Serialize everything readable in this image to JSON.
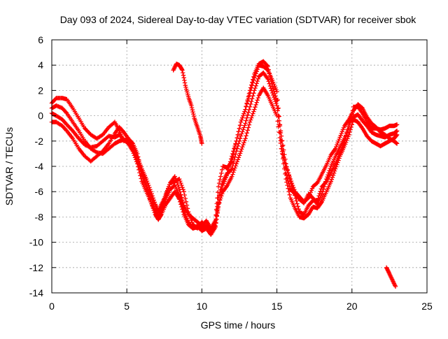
{
  "chart_data": {
    "type": "scatter",
    "title": "Day 093 of 2024, Sidereal Day-to-day VTEC variation (SDTVAR) for receiver sbok",
    "xlabel": "GPS time / hours",
    "ylabel": "SDTVAR / TECUs",
    "xlim": [
      0,
      25
    ],
    "ylim": [
      -14,
      6
    ],
    "xticks": [
      0,
      5,
      10,
      15,
      20,
      25
    ],
    "yticks": [
      -14,
      -12,
      -10,
      -8,
      -6,
      -4,
      -2,
      0,
      2,
      4,
      6
    ],
    "grid": true,
    "marker": "+",
    "colors": {
      "series": "#ff0000",
      "axis": "#000000",
      "grid": "#a0a0a0",
      "background": "#ffffff"
    },
    "series": [
      {
        "name": "track-a",
        "x": [
          0.0,
          0.3,
          0.7,
          1.0,
          1.4,
          1.8,
          2.2,
          2.6,
          3.0,
          3.4,
          3.8,
          4.2,
          4.5,
          4.8,
          5.1,
          5.4,
          5.7,
          6.0,
          6.3,
          6.6,
          6.9,
          7.1,
          7.3,
          7.6,
          7.9,
          8.2,
          8.5,
          8.8,
          9.1,
          9.4,
          9.7,
          10.0,
          10.3,
          10.6,
          10.9,
          11.1,
          11.4,
          11.7,
          12.0,
          12.3,
          12.6,
          12.9,
          13.2,
          13.5,
          13.8,
          14.1,
          14.4,
          14.7,
          15.0,
          15.3,
          15.6,
          15.9,
          16.2,
          16.5,
          16.8,
          17.1,
          17.4,
          17.7,
          18.0,
          18.3,
          18.6,
          18.9,
          19.2,
          19.5,
          19.8,
          20.1,
          20.4,
          20.7,
          21.0,
          21.3,
          21.6,
          21.9,
          22.2,
          22.5,
          22.8,
          23.0
        ],
        "y": [
          1.0,
          1.4,
          1.4,
          1.3,
          0.6,
          -0.2,
          -1.0,
          -1.5,
          -1.8,
          -1.5,
          -0.9,
          -0.5,
          -1.2,
          -2.0,
          -1.8,
          -2.2,
          -3.0,
          -4.5,
          -5.5,
          -6.3,
          -7.5,
          -8.0,
          -7.5,
          -6.6,
          -5.8,
          -5.5,
          -6.3,
          -7.5,
          -8.4,
          -8.9,
          -8.8,
          -9.0,
          -8.7,
          -9.3,
          -8.5,
          -6.5,
          -5.2,
          -4.5,
          -3.2,
          -2.0,
          -0.5,
          0.5,
          1.8,
          3.0,
          4.0,
          3.9,
          3.6,
          2.8,
          1.9,
          -2.0,
          -4.5,
          -5.8,
          -6.2,
          -6.6,
          -6.9,
          -6.2,
          -6.5,
          -7.0,
          -6.2,
          -5.0,
          -4.0,
          -3.2,
          -2.5,
          -1.8,
          -1.0,
          0.7,
          0.7,
          0.2,
          -0.5,
          -1.0,
          -1.0,
          -1.1,
          -1.0,
          -0.8,
          -0.8,
          -0.7
        ]
      },
      {
        "name": "track-b",
        "x": [
          0.0,
          0.3,
          0.7,
          1.0,
          1.4,
          1.8,
          2.2,
          2.6,
          3.0,
          3.4,
          3.8,
          4.2,
          4.5,
          4.8,
          5.1,
          5.4,
          5.7,
          6.0,
          6.3,
          6.6,
          6.9,
          7.1,
          7.3,
          7.6,
          7.9,
          8.2,
          8.5,
          8.8,
          9.1,
          9.4,
          9.7,
          10.0,
          10.3,
          10.6,
          10.9,
          11.1,
          11.4,
          11.7,
          12.0,
          12.3,
          12.6,
          12.9,
          13.2,
          13.5,
          13.8,
          14.1,
          14.4,
          14.7,
          15.0,
          15.3,
          15.6,
          15.9,
          16.2,
          16.5,
          16.8,
          17.1,
          17.4,
          17.7,
          18.0,
          18.3,
          18.6,
          18.9,
          19.2,
          19.5,
          19.8,
          20.1,
          20.4,
          20.7,
          21.0,
          21.3,
          21.6,
          21.9,
          22.2,
          22.5,
          22.8,
          23.0
        ],
        "y": [
          0.6,
          0.8,
          0.6,
          0.2,
          -0.5,
          -1.2,
          -2.0,
          -2.6,
          -2.9,
          -3.0,
          -2.6,
          -2.2,
          -2.0,
          -1.9,
          -2.2,
          -2.8,
          -3.8,
          -5.2,
          -6.0,
          -6.8,
          -7.8,
          -8.2,
          -7.8,
          -7.0,
          -6.5,
          -6.0,
          -6.6,
          -7.8,
          -8.6,
          -8.9,
          -8.7,
          -9.1,
          -8.9,
          -9.4,
          -8.8,
          -7.0,
          -6.0,
          -5.5,
          -4.8,
          -3.8,
          -2.8,
          -1.8,
          -0.5,
          0.5,
          1.6,
          2.2,
          1.6,
          0.8,
          0.0,
          -2.6,
          -5.0,
          -6.5,
          -7.3,
          -8.0,
          -8.1,
          -7.8,
          -7.2,
          -7.3,
          -6.8,
          -6.0,
          -5.2,
          -4.2,
          -3.2,
          -2.4,
          -1.5,
          -0.3,
          -0.5,
          -1.0,
          -1.6,
          -2.0,
          -2.2,
          -2.4,
          -2.2,
          -2.0,
          -1.8,
          -1.5
        ]
      },
      {
        "name": "track-c",
        "x": [
          0.0,
          0.3,
          0.7,
          1.0,
          1.4,
          1.8,
          2.2,
          2.6,
          3.0,
          3.4,
          3.8,
          4.2,
          4.5,
          4.8,
          5.1,
          5.4,
          5.7,
          6.0,
          6.3,
          6.6,
          6.9,
          7.1,
          7.3,
          7.6,
          7.9,
          8.2,
          8.5,
          8.8,
          9.1,
          9.4,
          9.7,
          10.0,
          10.3,
          10.6,
          10.9,
          11.1,
          11.4,
          11.7,
          12.0,
          12.3,
          12.6,
          12.9,
          13.2,
          13.5,
          13.8,
          14.1,
          14.4,
          14.7,
          15.0,
          15.3,
          15.6,
          15.9,
          16.2,
          16.5,
          16.8,
          17.1,
          17.4,
          17.7,
          18.0,
          18.3,
          18.6,
          18.9,
          19.2,
          19.5,
          19.8,
          20.1,
          20.4,
          20.7,
          21.0,
          21.3,
          21.6,
          21.9,
          22.2,
          22.5,
          22.8,
          23.0
        ],
        "y": [
          -0.5,
          -0.5,
          -0.8,
          -1.2,
          -1.8,
          -2.6,
          -3.2,
          -3.6,
          -3.2,
          -2.8,
          -2.2,
          -1.4,
          -0.9,
          -1.3,
          -1.8,
          -2.5,
          -3.5,
          -4.6,
          -5.6,
          -6.8,
          -7.6,
          -8.2,
          -7.4,
          -6.2,
          -5.3,
          -4.8,
          -5.8,
          -7.1,
          -7.8,
          -8.1,
          -8.4,
          -8.7,
          -8.3,
          -8.9,
          -8.3,
          -5.6,
          -4.0,
          -4.1,
          -3.6,
          -2.0,
          -0.5,
          0.5,
          2.0,
          3.3,
          4.1,
          4.3,
          3.9,
          2.3,
          1.2,
          -2.6,
          -4.0,
          -5.0,
          -6.0,
          -6.4,
          -6.8,
          -6.5,
          -5.6,
          -5.3,
          -4.6,
          -3.9,
          -3.1,
          -2.6,
          -1.7,
          -0.8,
          -0.3,
          0.4,
          0.9,
          0.6,
          -0.1,
          -0.6,
          -0.9,
          -1.3,
          -1.5,
          -1.8,
          -2.0,
          -2.2
        ]
      },
      {
        "name": "track-d",
        "x": [
          0.0,
          0.3,
          0.7,
          1.0,
          1.4,
          1.8,
          2.2,
          2.6,
          3.0,
          3.4,
          3.8,
          4.2,
          4.5,
          4.8,
          5.1,
          5.4,
          5.7,
          6.0,
          6.3,
          6.6,
          6.9,
          7.1,
          7.3,
          7.6,
          7.9,
          8.2,
          8.5,
          8.8,
          9.1,
          9.4,
          9.7,
          10.0,
          10.3,
          10.6,
          10.9,
          11.1,
          11.4,
          11.7,
          12.0,
          12.3,
          12.6,
          12.9,
          13.2,
          13.5,
          13.8,
          14.1,
          14.4,
          14.7,
          15.0,
          15.3,
          15.6,
          15.9,
          16.2,
          16.5,
          16.8,
          17.1,
          17.4,
          17.7,
          18.0,
          18.3,
          18.6,
          18.9,
          19.2,
          19.5,
          19.8,
          20.1,
          20.4,
          20.7,
          21.0,
          21.3,
          21.6,
          21.9,
          22.2,
          22.5,
          22.8,
          23.0
        ],
        "y": [
          0.2,
          0.0,
          -0.3,
          -0.7,
          -1.2,
          -1.8,
          -2.3,
          -2.5,
          -2.4,
          -2.0,
          -1.6,
          -1.7,
          -1.5,
          -1.9,
          -2.0,
          -2.7,
          -3.3,
          -4.2,
          -5.0,
          -6.0,
          -7.0,
          -7.6,
          -7.0,
          -6.3,
          -5.3,
          -5.2,
          -5.0,
          -6.0,
          -7.6,
          -8.6,
          -8.9,
          -8.4,
          -8.8,
          -9.2,
          -8.7,
          -7.2,
          -5.5,
          -4.6,
          -4.2,
          -2.8,
          -1.6,
          -0.6,
          0.7,
          2.0,
          3.1,
          3.4,
          2.9,
          1.8,
          0.8,
          -1.6,
          -3.8,
          -5.2,
          -6.3,
          -7.6,
          -7.8,
          -7.1,
          -6.7,
          -6.7,
          -5.6,
          -5.2,
          -4.5,
          -3.8,
          -2.9,
          -2.1,
          -0.6,
          -0.1,
          0.1,
          -0.4,
          -0.8,
          -1.3,
          -1.5,
          -1.6,
          -1.7,
          -1.5,
          -1.4,
          -1.2
        ]
      },
      {
        "name": "track-e",
        "x": [
          8.1,
          8.3,
          8.5,
          8.7,
          8.9,
          9.1,
          9.3,
          9.5,
          9.7,
          9.9,
          10.0
        ],
        "y": [
          3.6,
          4.1,
          4.0,
          3.6,
          2.4,
          1.5,
          0.8,
          -0.2,
          -0.9,
          -1.6,
          -2.2
        ]
      },
      {
        "name": "track-f",
        "x": [
          22.3,
          22.5,
          22.7,
          22.9
        ],
        "y": [
          -12.0,
          -12.5,
          -13.0,
          -13.5
        ]
      }
    ]
  }
}
